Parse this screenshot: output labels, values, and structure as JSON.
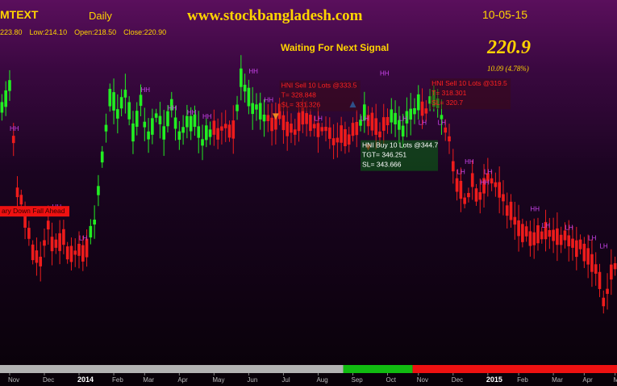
{
  "header": {
    "symbol": "MTEXT",
    "timeframe": "Daily",
    "site": "www.stockbangladesh.com",
    "date": "10-05-15",
    "ohlc": {
      "high": "223.80",
      "low": "Low:214.10",
      "open": "Open:218.50",
      "close": "Close:220.90"
    },
    "signal_status": "Waiting For Next Signal",
    "last_price": "220.9",
    "change": "10.09  (4.78%)"
  },
  "colors": {
    "bull": "#22ee22",
    "bear": "#ee1c1c",
    "marker_text": "#cc44ee",
    "signal_text": "#ff2020",
    "header_text": "#ffd400"
  },
  "annotations": [
    {
      "id": "sell-1",
      "lines": [
        "HNI Sell 10 Lots @333.5",
        "T= 328.848",
        "SL= 331.326"
      ],
      "session": 72,
      "level": 325,
      "style": "sell"
    },
    {
      "id": "buy-1",
      "lines": [
        "HNI Buy 10 Lots @344.7",
        "TGT= 346.251",
        "SL= 343.666"
      ],
      "session": 93,
      "level": 296,
      "style": "buy"
    },
    {
      "id": "sell-2",
      "lines": [
        "HNI Sell 10 Lots @319.5",
        "T= 318.301",
        "SL= 320.7"
      ],
      "session": 111,
      "level": 326,
      "style": "sell"
    },
    {
      "id": "down-fall",
      "lines": [
        "ary Down Fall Ahead"
      ],
      "session": 0,
      "level": 264,
      "style": "alert"
    }
  ],
  "chart_data": {
    "type": "candlestick",
    "title": "",
    "x_axis_labels": [
      "Nov",
      "Dec",
      "2014",
      "Feb",
      "Mar",
      "Apr",
      "May",
      "Jun",
      "Jul",
      "Aug",
      "Sep",
      "Oct",
      "Nov",
      "Dec",
      "2015",
      "Feb",
      "Mar",
      "Apr",
      "Ma"
    ],
    "x_axis_bold": [
      "2014",
      "2015"
    ],
    "ylim": [
      195,
      350
    ],
    "y_axis_visible": false,
    "grid": false,
    "sessions_total": 160,
    "label_sessions": [
      2,
      11,
      20,
      29,
      37,
      46,
      55,
      64,
      73,
      82,
      91,
      100,
      108,
      117,
      126,
      134,
      143,
      151,
      159
    ],
    "candle_keypoints": [
      [
        0,
        318,
        "g"
      ],
      [
        2,
        326,
        "g"
      ],
      [
        4,
        276,
        "r"
      ],
      [
        6,
        262,
        "r"
      ],
      [
        8,
        246,
        "r"
      ],
      [
        10,
        243,
        "r"
      ],
      [
        12,
        256,
        "r"
      ],
      [
        14,
        247,
        "r"
      ],
      [
        16,
        250,
        "r"
      ],
      [
        18,
        242,
        "r"
      ],
      [
        20,
        244,
        "r"
      ],
      [
        22,
        245,
        "r"
      ],
      [
        24,
        262,
        "g"
      ],
      [
        26,
        292,
        "g"
      ],
      [
        28,
        320,
        "g"
      ],
      [
        30,
        312,
        "g"
      ],
      [
        32,
        322,
        "g"
      ],
      [
        34,
        305,
        "g"
      ],
      [
        36,
        317,
        "g"
      ],
      [
        38,
        300,
        "g"
      ],
      [
        40,
        314,
        "g"
      ],
      [
        42,
        304,
        "g"
      ],
      [
        44,
        316,
        "g"
      ],
      [
        46,
        302,
        "g"
      ],
      [
        48,
        307,
        "g"
      ],
      [
        50,
        311,
        "g"
      ],
      [
        52,
        299,
        "g"
      ],
      [
        54,
        304,
        "g"
      ],
      [
        56,
        303,
        "r"
      ],
      [
        58,
        305,
        "r"
      ],
      [
        60,
        303,
        "r"
      ],
      [
        62,
        330,
        "g"
      ],
      [
        64,
        320,
        "g"
      ],
      [
        66,
        314,
        "g"
      ],
      [
        68,
        311,
        "g"
      ],
      [
        70,
        308,
        "r"
      ],
      [
        72,
        312,
        "r"
      ],
      [
        74,
        307,
        "r"
      ],
      [
        76,
        305,
        "r"
      ],
      [
        78,
        309,
        "r"
      ],
      [
        80,
        307,
        "r"
      ],
      [
        82,
        302,
        "r"
      ],
      [
        84,
        305,
        "r"
      ],
      [
        86,
        300,
        "r"
      ],
      [
        88,
        303,
        "r"
      ],
      [
        90,
        300,
        "r"
      ],
      [
        92,
        305,
        "r"
      ],
      [
        94,
        315,
        "g"
      ],
      [
        96,
        308,
        "r"
      ],
      [
        98,
        302,
        "r"
      ],
      [
        100,
        308,
        "r"
      ],
      [
        102,
        310,
        "g"
      ],
      [
        104,
        306,
        "g"
      ],
      [
        106,
        313,
        "g"
      ],
      [
        108,
        318,
        "g"
      ],
      [
        110,
        312,
        "r"
      ],
      [
        112,
        322,
        "g"
      ],
      [
        114,
        310,
        "g"
      ],
      [
        116,
        300,
        "r"
      ],
      [
        118,
        276,
        "r"
      ],
      [
        120,
        272,
        "r"
      ],
      [
        122,
        278,
        "r"
      ],
      [
        124,
        270,
        "r"
      ],
      [
        126,
        282,
        "r"
      ],
      [
        128,
        276,
        "r"
      ],
      [
        130,
        271,
        "r"
      ],
      [
        132,
        264,
        "r"
      ],
      [
        134,
        258,
        "r"
      ],
      [
        136,
        255,
        "r"
      ],
      [
        138,
        252,
        "r"
      ],
      [
        140,
        253,
        "r"
      ],
      [
        142,
        256,
        "r"
      ],
      [
        144,
        252,
        "r"
      ],
      [
        146,
        255,
        "r"
      ],
      [
        148,
        250,
        "r"
      ],
      [
        150,
        248,
        "r"
      ],
      [
        152,
        242,
        "r"
      ],
      [
        154,
        236,
        "r"
      ],
      [
        156,
        222,
        "r"
      ],
      [
        158,
        235,
        "r"
      ],
      [
        159,
        238,
        "r"
      ]
    ],
    "markers": [
      {
        "text": "HH",
        "session": 2,
        "value": 304
      },
      {
        "text": "HH",
        "session": 13,
        "value": 266
      },
      {
        "text": "LH",
        "session": 20,
        "value": 251
      },
      {
        "text": "HH",
        "session": 36,
        "value": 323
      },
      {
        "text": "HH",
        "session": 43,
        "value": 314
      },
      {
        "text": "HH",
        "session": 48,
        "value": 312
      },
      {
        "text": "HH",
        "session": 52,
        "value": 310
      },
      {
        "text": "HH",
        "session": 64,
        "value": 332
      },
      {
        "text": "HH",
        "session": 68,
        "value": 318
      },
      {
        "text": "LH",
        "session": 81,
        "value": 309
      },
      {
        "text": "LH",
        "session": 93,
        "value": 309
      },
      {
        "text": "HH",
        "session": 98,
        "value": 331
      },
      {
        "text": "LH",
        "session": 103,
        "value": 309
      },
      {
        "text": "LH",
        "session": 108,
        "value": 307
      },
      {
        "text": "LH",
        "session": 113,
        "value": 307
      },
      {
        "text": "LH",
        "session": 118,
        "value": 283
      },
      {
        "text": "HH",
        "session": 120,
        "value": 288
      },
      {
        "text": "LH",
        "session": 125,
        "value": 283
      },
      {
        "text": "HH",
        "session": 124,
        "value": 278
      },
      {
        "text": "HH",
        "session": 137,
        "value": 265
      },
      {
        "text": "LH",
        "session": 140,
        "value": 257
      },
      {
        "text": "LH",
        "session": 146,
        "value": 256
      },
      {
        "text": "LH",
        "session": 152,
        "value": 251
      },
      {
        "text": "LH",
        "session": 155,
        "value": 247
      }
    ],
    "signal_triangles": [
      {
        "session": 71,
        "value": 311,
        "direction": "down",
        "color": "#ee8822"
      },
      {
        "session": 91,
        "value": 317,
        "direction": "up",
        "color": "#2299ff"
      },
      {
        "session": 95,
        "value": 296,
        "direction": "down",
        "color": "#ee1c1c"
      }
    ],
    "phase_bar": [
      {
        "from": 0,
        "to": 89,
        "color": "#b3b3b3"
      },
      {
        "from": 89,
        "to": 107,
        "color": "#11bb11"
      },
      {
        "from": 107,
        "to": 160,
        "color": "#ee1111"
      }
    ]
  }
}
